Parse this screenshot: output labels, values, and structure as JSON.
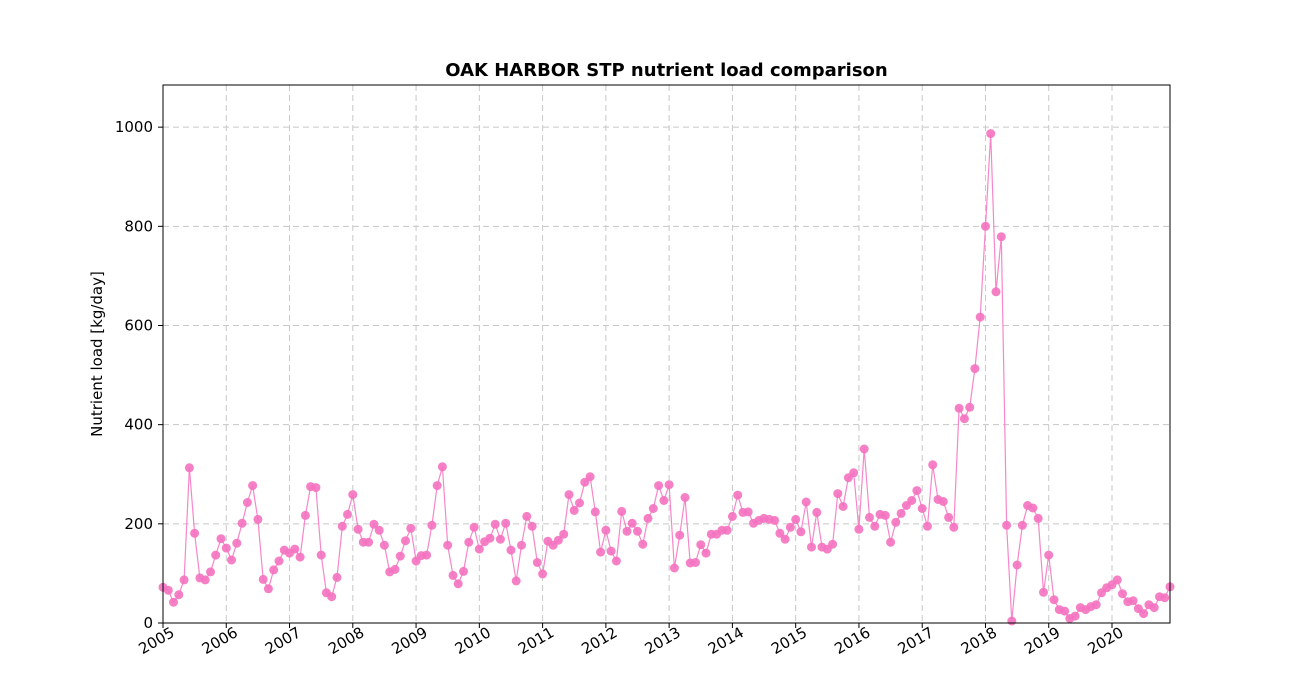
{
  "chart_data": {
    "type": "line",
    "title": "OAK HARBOR STP nutrient load comparison",
    "xlabel": "",
    "ylabel": "Nutrient load [kg/day]",
    "xlim": [
      "2005-01",
      "2020-12"
    ],
    "ylim": [
      0,
      1085
    ],
    "y_ticks": [
      0,
      200,
      400,
      600,
      800,
      1000
    ],
    "x_tick_labels": [
      "2005",
      "2006",
      "2007",
      "2008",
      "2009",
      "2010",
      "2011",
      "2012",
      "2013",
      "2014",
      "2015",
      "2016",
      "2017",
      "2018",
      "2019",
      "2020"
    ],
    "grid": true,
    "marker": "circle",
    "series": [
      {
        "color": "#f472c0",
        "x": [
          "2005-01",
          "2005-02",
          "2005-03",
          "2005-04",
          "2005-05",
          "2005-06",
          "2005-07",
          "2005-08",
          "2005-09",
          "2005-10",
          "2005-11",
          "2005-12",
          "2006-01",
          "2006-02",
          "2006-03",
          "2006-04",
          "2006-05",
          "2006-06",
          "2006-07",
          "2006-08",
          "2006-09",
          "2006-10",
          "2006-11",
          "2006-12",
          "2007-01",
          "2007-02",
          "2007-03",
          "2007-04",
          "2007-05",
          "2007-06",
          "2007-07",
          "2007-08",
          "2007-09",
          "2007-10",
          "2007-11",
          "2007-12",
          "2008-01",
          "2008-02",
          "2008-03",
          "2008-04",
          "2008-05",
          "2008-06",
          "2008-07",
          "2008-08",
          "2008-09",
          "2008-10",
          "2008-11",
          "2008-12",
          "2009-01",
          "2009-02",
          "2009-03",
          "2009-04",
          "2009-05",
          "2009-06",
          "2009-07",
          "2009-08",
          "2009-09",
          "2009-10",
          "2009-11",
          "2009-12",
          "2010-01",
          "2010-02",
          "2010-03",
          "2010-04",
          "2010-05",
          "2010-06",
          "2010-07",
          "2010-08",
          "2010-09",
          "2010-10",
          "2010-11",
          "2010-12",
          "2011-01",
          "2011-02",
          "2011-03",
          "2011-04",
          "2011-05",
          "2011-06",
          "2011-07",
          "2011-08",
          "2011-09",
          "2011-10",
          "2011-11",
          "2011-12",
          "2012-01",
          "2012-02",
          "2012-03",
          "2012-04",
          "2012-05",
          "2012-06",
          "2012-07",
          "2012-08",
          "2012-09",
          "2012-10",
          "2012-11",
          "2012-12",
          "2013-01",
          "2013-02",
          "2013-03",
          "2013-04",
          "2013-05",
          "2013-06",
          "2013-07",
          "2013-08",
          "2013-09",
          "2013-10",
          "2013-11",
          "2013-12",
          "2014-01",
          "2014-02",
          "2014-03",
          "2014-04",
          "2014-05",
          "2014-06",
          "2014-07",
          "2014-08",
          "2014-09",
          "2014-10",
          "2014-11",
          "2014-12",
          "2015-01",
          "2015-02",
          "2015-03",
          "2015-04",
          "2015-05",
          "2015-06",
          "2015-07",
          "2015-08",
          "2015-09",
          "2015-10",
          "2015-11",
          "2015-12",
          "2016-01",
          "2016-02",
          "2016-03",
          "2016-04",
          "2016-05",
          "2016-06",
          "2016-07",
          "2016-08",
          "2016-09",
          "2016-10",
          "2016-11",
          "2016-12",
          "2017-01",
          "2017-02",
          "2017-03",
          "2017-04",
          "2017-05",
          "2017-06",
          "2017-07",
          "2017-08",
          "2017-09",
          "2017-10",
          "2017-11",
          "2017-12",
          "2018-01",
          "2018-02",
          "2018-03",
          "2018-04",
          "2018-05",
          "2018-06",
          "2018-07",
          "2018-08",
          "2018-09",
          "2018-10",
          "2018-11",
          "2018-12",
          "2019-01",
          "2019-02",
          "2019-03",
          "2019-04",
          "2019-05",
          "2019-06",
          "2019-07",
          "2019-08",
          "2019-09",
          "2019-10",
          "2019-11",
          "2019-12",
          "2020-01",
          "2020-02",
          "2020-03",
          "2020-04",
          "2020-05",
          "2020-06",
          "2020-07",
          "2020-08",
          "2020-09",
          "2020-10",
          "2020-11",
          "2020-12"
        ],
        "y": [
          72,
          66,
          42,
          57,
          87,
          313,
          181,
          91,
          87,
          103,
          137,
          170,
          151,
          127,
          161,
          201,
          243,
          277,
          209,
          88,
          69,
          107,
          125,
          147,
          141,
          149,
          133,
          217,
          275,
          273,
          137,
          61,
          53,
          92,
          195,
          219,
          259,
          189,
          163,
          163,
          199,
          187,
          157,
          103,
          108,
          135,
          166,
          191,
          125,
          136,
          137,
          197,
          277,
          315,
          157,
          96,
          79,
          104,
          163,
          193,
          149,
          164,
          171,
          199,
          169,
          201,
          147,
          85,
          157,
          215,
          195,
          122,
          99,
          165,
          157,
          167,
          179,
          259,
          227,
          242,
          284,
          295,
          224,
          143,
          187,
          145,
          125,
          225,
          185,
          201,
          185,
          159,
          211,
          231,
          277,
          247,
          279,
          111,
          177,
          253,
          121,
          122,
          158,
          141,
          179,
          179,
          187,
          187,
          215,
          258,
          223,
          224,
          201,
          207,
          211,
          209,
          207,
          181,
          169,
          193,
          209,
          184,
          244,
          153,
          223,
          153,
          149,
          159,
          261,
          235,
          293,
          303,
          189,
          351,
          213,
          195,
          219,
          217,
          163,
          203,
          221,
          237,
          247,
          267,
          231,
          195,
          319,
          249,
          245,
          213,
          193,
          433,
          412,
          435,
          513,
          617,
          800,
          987,
          668,
          779,
          197,
          4,
          117,
          197,
          237,
          232,
          211,
          62,
          137,
          47,
          27,
          24,
          9,
          14,
          31,
          27,
          33,
          37,
          61,
          71,
          77,
          87,
          59,
          43,
          45,
          29,
          19,
          37,
          31,
          53,
          51,
          73
        ]
      }
    ]
  }
}
